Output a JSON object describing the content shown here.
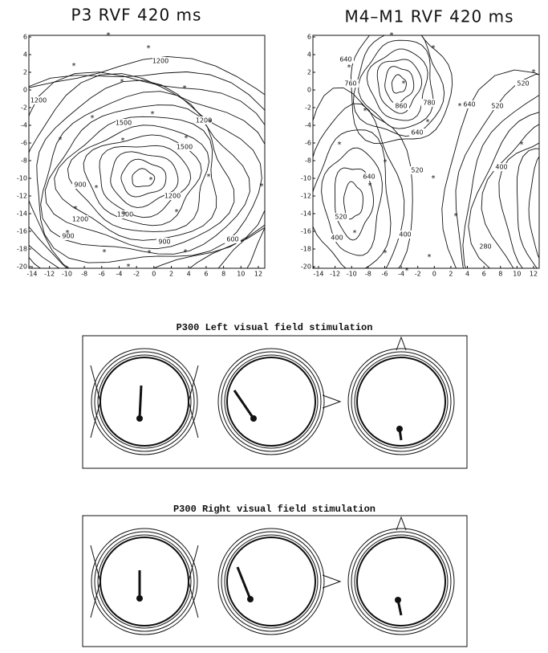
{
  "panels": [
    {
      "title": "P3 RVF 420 ms",
      "xticks": [
        -14,
        -12,
        -10,
        -8,
        -6,
        -4,
        -2,
        0,
        2,
        4,
        6,
        8,
        10,
        12
      ],
      "yticks": [
        6,
        4,
        2,
        0,
        -2,
        -4,
        -6,
        -8,
        -10,
        -12,
        -14,
        -16,
        -18,
        -20
      ],
      "contour_labels": [
        1200,
        1200,
        1500,
        1500,
        1500,
        1200,
        1200,
        900,
        900,
        900,
        600,
        1200
      ]
    },
    {
      "title": "M4–M1 RVF 420 ms",
      "xticks": [
        -14,
        -12,
        -10,
        -8,
        -6,
        -4,
        -2,
        0,
        2,
        4,
        6,
        8,
        10,
        12
      ],
      "yticks": [
        6,
        4,
        2,
        0,
        -2,
        -4,
        -6,
        -8,
        -10,
        -12,
        -14,
        -16,
        -18,
        -20
      ],
      "contour_labels": [
        640,
        760,
        860,
        780,
        520,
        640,
        640,
        520,
        640,
        400,
        520,
        400,
        400,
        280,
        520
      ]
    }
  ],
  "dipole_figures": [
    {
      "title": "P300 Left visual field stimulation"
    },
    {
      "title": "P300 Right visual field stimulation"
    }
  ]
}
